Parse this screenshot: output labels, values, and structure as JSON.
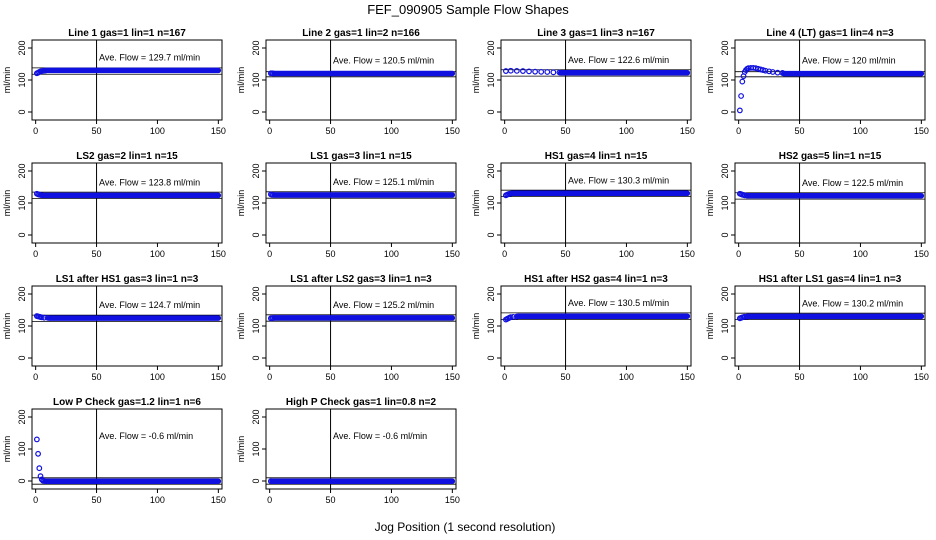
{
  "title": "FEF_090905  Sample Flow Shapes",
  "xlabel": "Jog Position (1 second resolution)",
  "colors": {
    "points": "#1010e0",
    "axes": "#000000",
    "background": "#ffffff"
  },
  "chart_data": [
    {
      "type": "scatter",
      "title": "Line 1 gas=1 lin=1 n=167",
      "ylabel": "ml/min",
      "xlim": [
        0,
        150
      ],
      "ylim": [
        0,
        200
      ],
      "xticks": [
        "0",
        "50",
        "100",
        "150"
      ],
      "yticks": [
        "0",
        "100",
        "200"
      ],
      "annotation": "Ave. Flow =  129.7  ml/min",
      "ave_flow": 129.7,
      "vline_x": 50,
      "hlines": [
        118,
        138
      ],
      "points": [
        [
          1,
          121
        ],
        [
          2,
          123
        ],
        [
          3,
          125
        ],
        [
          4,
          127
        ],
        [
          5,
          128
        ],
        [
          6,
          128.5
        ],
        [
          7,
          129
        ],
        [
          8,
          129.5
        ]
      ],
      "steady_value": 130
    },
    {
      "type": "scatter",
      "title": "Line 2 gas=1 lin=2 n=166",
      "ylabel": "ml/min",
      "xlim": [
        0,
        150
      ],
      "ylim": [
        0,
        200
      ],
      "xticks": [
        "0",
        "50",
        "100",
        "150"
      ],
      "yticks": [
        "0",
        "100",
        "200"
      ],
      "annotation": "Ave. Flow =  120.5  ml/min",
      "ave_flow": 120.5,
      "vline_x": 50,
      "hlines": [
        110,
        126
      ],
      "points": [
        [
          1,
          121
        ],
        [
          2,
          121
        ],
        [
          3,
          120.5
        ]
      ],
      "steady_value": 120.5
    },
    {
      "type": "scatter",
      "title": "Line 3 gas=1 lin=3 n=167",
      "ylabel": "ml/min",
      "xlim": [
        0,
        150
      ],
      "ylim": [
        0,
        200
      ],
      "xticks": [
        "0",
        "50",
        "100",
        "150"
      ],
      "yticks": [
        "0",
        "100",
        "200"
      ],
      "annotation": "Ave. Flow =  122.6  ml/min",
      "ave_flow": 122.6,
      "vline_x": 50,
      "hlines": [
        112,
        132
      ],
      "points": [
        [
          1,
          128
        ],
        [
          5,
          129
        ],
        [
          10,
          128.5
        ],
        [
          15,
          128
        ],
        [
          20,
          127
        ],
        [
          25,
          126
        ],
        [
          30,
          125.5
        ],
        [
          35,
          125
        ],
        [
          40,
          124
        ],
        [
          45,
          123.5
        ]
      ],
      "steady_value": 122.6
    },
    {
      "type": "scatter",
      "title": "Line 4 (LT) gas=1 lin=4 n=3",
      "ylabel": "ml/min",
      "xlim": [
        0,
        150
      ],
      "ylim": [
        0,
        200
      ],
      "xticks": [
        "0",
        "50",
        "100",
        "150"
      ],
      "yticks": [
        "0",
        "100",
        "200"
      ],
      "annotation": "Ave. Flow =  120  ml/min",
      "ave_flow": 120,
      "vline_x": 50,
      "hlines": [
        110,
        126
      ],
      "points": [
        [
          1,
          5
        ],
        [
          2,
          50
        ],
        [
          3,
          95
        ],
        [
          4,
          112
        ],
        [
          5,
          125
        ],
        [
          6,
          131
        ],
        [
          7,
          135
        ],
        [
          8,
          137
        ],
        [
          10,
          138
        ],
        [
          12,
          138
        ],
        [
          14,
          137
        ],
        [
          16,
          135
        ],
        [
          18,
          133
        ],
        [
          20,
          131
        ],
        [
          22,
          129
        ],
        [
          25,
          127
        ],
        [
          28,
          125
        ],
        [
          32,
          123
        ],
        [
          36,
          122
        ]
      ],
      "steady_value": 120
    },
    {
      "type": "scatter",
      "title": "LS2 gas=2 lin=1 n=15",
      "ylabel": "ml/min",
      "xlim": [
        0,
        150
      ],
      "ylim": [
        0,
        200
      ],
      "xticks": [
        "0",
        "50",
        "100",
        "150"
      ],
      "yticks": [
        "0",
        "100",
        "200"
      ],
      "annotation": "Ave. Flow =  123.8  ml/min",
      "ave_flow": 123.8,
      "vline_x": 50,
      "hlines": [
        114,
        134
      ],
      "points": [
        [
          1,
          129
        ],
        [
          2,
          127
        ],
        [
          3,
          126
        ],
        [
          4,
          125
        ],
        [
          5,
          124.5
        ]
      ],
      "steady_value": 123.8
    },
    {
      "type": "scatter",
      "title": "LS1 gas=3 lin=1 n=15",
      "ylabel": "ml/min",
      "xlim": [
        0,
        150
      ],
      "ylim": [
        0,
        200
      ],
      "xticks": [
        "0",
        "50",
        "100",
        "150"
      ],
      "yticks": [
        "0",
        "100",
        "200"
      ],
      "annotation": "Ave. Flow =  125.1  ml/min",
      "ave_flow": 125.1,
      "vline_x": 50,
      "hlines": [
        115,
        135
      ],
      "points": [
        [
          1,
          127
        ],
        [
          2,
          126
        ],
        [
          3,
          125.5
        ]
      ],
      "steady_value": 125.1
    },
    {
      "type": "scatter",
      "title": "HS1 gas=4 lin=1 n=15",
      "ylabel": "ml/min",
      "xlim": [
        0,
        150
      ],
      "ylim": [
        0,
        200
      ],
      "xticks": [
        "0",
        "50",
        "100",
        "150"
      ],
      "yticks": [
        "0",
        "100",
        "200"
      ],
      "annotation": "Ave. Flow =  130.3  ml/min",
      "ave_flow": 130.3,
      "vline_x": 50,
      "hlines": [
        120,
        140
      ],
      "points": [
        [
          1,
          124
        ],
        [
          2,
          126
        ],
        [
          3,
          127.5
        ],
        [
          4,
          128.5
        ],
        [
          5,
          129.5
        ]
      ],
      "steady_value": 130.3
    },
    {
      "type": "scatter",
      "title": "HS2 gas=5 lin=1 n=15",
      "ylabel": "ml/min",
      "xlim": [
        0,
        150
      ],
      "ylim": [
        0,
        200
      ],
      "xticks": [
        "0",
        "50",
        "100",
        "150"
      ],
      "yticks": [
        "0",
        "100",
        "200"
      ],
      "annotation": "Ave. Flow =  122.5  ml/min",
      "ave_flow": 122.5,
      "vline_x": 50,
      "hlines": [
        112,
        132
      ],
      "points": [
        [
          1,
          129
        ],
        [
          2,
          127.5
        ],
        [
          3,
          126
        ],
        [
          4,
          125
        ],
        [
          5,
          124
        ],
        [
          7,
          123
        ]
      ],
      "steady_value": 122.5
    },
    {
      "type": "scatter",
      "title": "LS1 after HS1 gas=3 lin=1 n=3",
      "ylabel": "ml/min",
      "xlim": [
        0,
        150
      ],
      "ylim": [
        0,
        200
      ],
      "xticks": [
        "0",
        "50",
        "100",
        "150"
      ],
      "yticks": [
        "0",
        "100",
        "200"
      ],
      "annotation": "Ave. Flow =  124.7  ml/min",
      "ave_flow": 124.7,
      "vline_x": 50,
      "hlines": [
        114,
        134
      ],
      "points": [
        [
          1,
          131
        ],
        [
          2,
          130
        ],
        [
          3,
          129
        ],
        [
          4,
          128
        ],
        [
          5,
          127
        ],
        [
          7,
          126
        ],
        [
          10,
          125.5
        ]
      ],
      "steady_value": 124.7
    },
    {
      "type": "scatter",
      "title": "LS1 after LS2 gas=3 lin=1 n=3",
      "ylabel": "ml/min",
      "xlim": [
        0,
        150
      ],
      "ylim": [
        0,
        200
      ],
      "xticks": [
        "0",
        "50",
        "100",
        "150"
      ],
      "yticks": [
        "0",
        "100",
        "200"
      ],
      "annotation": "Ave. Flow =  125.2  ml/min",
      "ave_flow": 125.2,
      "vline_x": 50,
      "hlines": [
        115,
        135
      ],
      "points": [
        [
          1,
          124
        ],
        [
          2,
          124.5
        ],
        [
          3,
          125
        ]
      ],
      "steady_value": 125.2
    },
    {
      "type": "scatter",
      "title": "HS1 after HS2 gas=4 lin=1 n=3",
      "ylabel": "ml/min",
      "xlim": [
        0,
        150
      ],
      "ylim": [
        0,
        200
      ],
      "xticks": [
        "0",
        "50",
        "100",
        "150"
      ],
      "yticks": [
        "0",
        "100",
        "200"
      ],
      "annotation": "Ave. Flow =  130.5  ml/min",
      "ave_flow": 130.5,
      "vline_x": 50,
      "hlines": [
        120,
        141
      ],
      "points": [
        [
          1,
          120
        ],
        [
          2,
          122
        ],
        [
          3,
          124
        ],
        [
          4,
          126
        ],
        [
          5,
          127.5
        ],
        [
          7,
          128.5
        ],
        [
          10,
          129.5
        ]
      ],
      "steady_value": 130.5
    },
    {
      "type": "scatter",
      "title": "HS1 after LS1 gas=4 lin=1 n=3",
      "ylabel": "ml/min",
      "xlim": [
        0,
        150
      ],
      "ylim": [
        0,
        200
      ],
      "xticks": [
        "0",
        "50",
        "100",
        "150"
      ],
      "yticks": [
        "0",
        "100",
        "200"
      ],
      "annotation": "Ave. Flow =  130.2  ml/min",
      "ave_flow": 130.2,
      "vline_x": 50,
      "hlines": [
        120,
        140
      ],
      "points": [
        [
          1,
          124
        ],
        [
          2,
          125.5
        ],
        [
          3,
          127
        ],
        [
          4,
          128
        ],
        [
          5,
          129
        ],
        [
          7,
          129.5
        ]
      ],
      "steady_value": 130.2
    },
    {
      "type": "scatter",
      "title": "Low P Check gas=1.2 lin=1 n=6",
      "ylabel": "ml/min",
      "xlim": [
        0,
        150
      ],
      "ylim": [
        0,
        200
      ],
      "xticks": [
        "0",
        "50",
        "100",
        "150"
      ],
      "yticks": [
        "0",
        "100",
        "200"
      ],
      "annotation": "Ave. Flow =  -0.6  ml/min",
      "ave_flow": -0.6,
      "vline_x": 50,
      "hlines": [
        -10,
        10
      ],
      "points": [
        [
          1,
          130
        ],
        [
          2,
          85
        ],
        [
          3,
          40
        ],
        [
          4,
          15
        ],
        [
          5,
          5
        ],
        [
          6,
          1
        ],
        [
          7,
          0
        ]
      ],
      "steady_value": -0.6
    },
    {
      "type": "scatter",
      "title": "High P Check gas=1 lin=0.8 n=2",
      "ylabel": "ml/min",
      "xlim": [
        0,
        150
      ],
      "ylim": [
        0,
        200
      ],
      "xticks": [
        "0",
        "50",
        "100",
        "150"
      ],
      "yticks": [
        "0",
        "100",
        "200"
      ],
      "annotation": "Ave. Flow =  -0.6  ml/min",
      "ave_flow": -0.6,
      "vline_x": 50,
      "hlines": [
        -10,
        10
      ],
      "points": [
        [
          1,
          -0.6
        ]
      ],
      "steady_value": -0.6
    }
  ]
}
